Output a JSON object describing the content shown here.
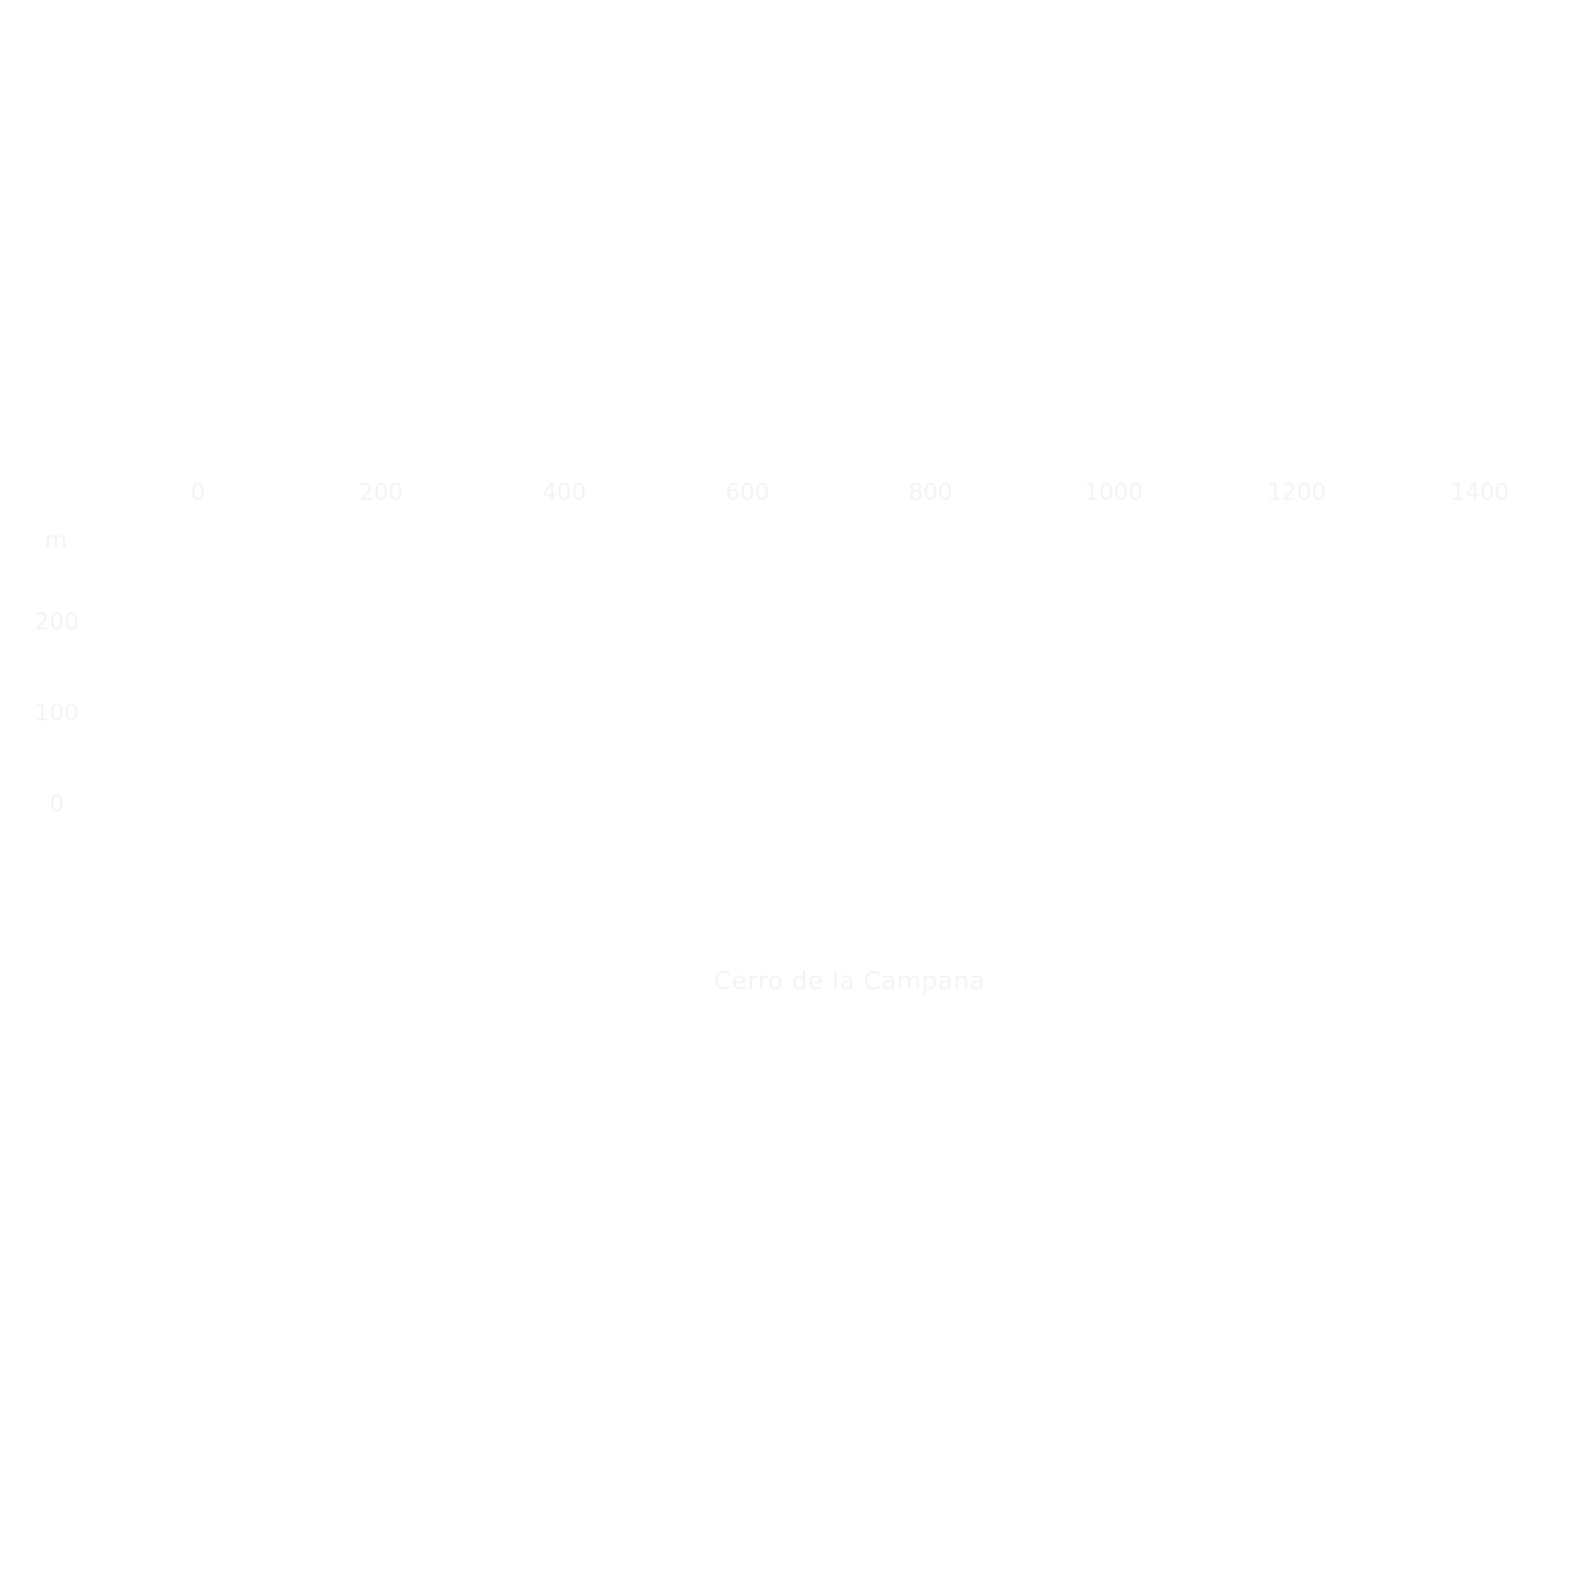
{
  "chart_data": {
    "type": "line",
    "title": "",
    "caption": "Cerro de la Campana",
    "xlabel": "",
    "ylabel": "m",
    "x_ticks": [
      "0",
      "200",
      "400",
      "600",
      "800",
      "1000",
      "1200",
      "1400"
    ],
    "y_ticks": [
      "200",
      "100",
      "0"
    ],
    "xlim": [
      0,
      1400
    ],
    "ylim": [
      0,
      200
    ],
    "grid": false,
    "series": [],
    "text_color": "#f4f4f6",
    "background": "#ffffff"
  }
}
